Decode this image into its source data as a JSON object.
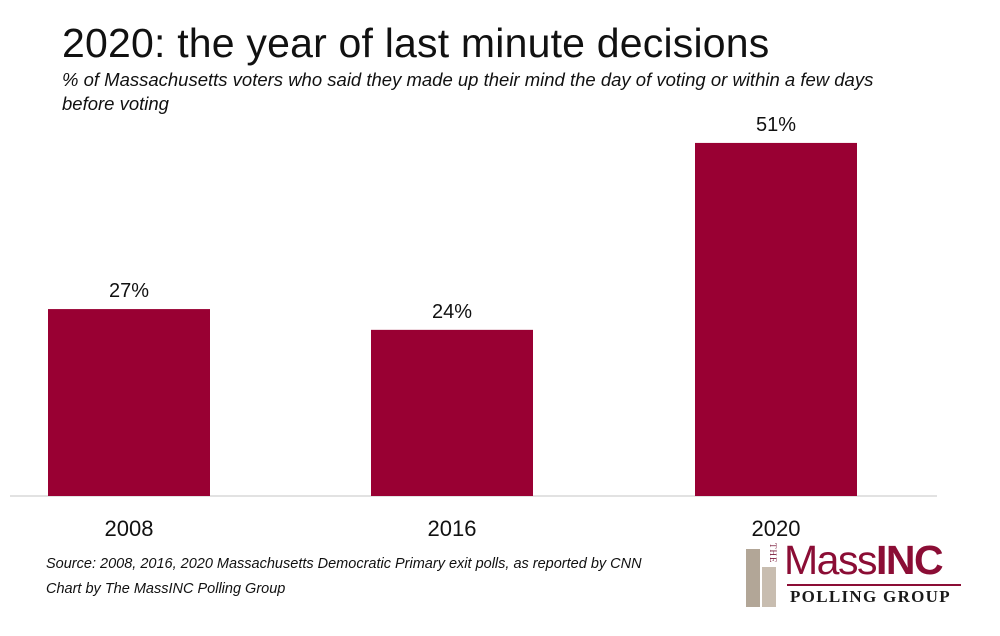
{
  "chart_data": {
    "type": "bar",
    "title": "2020: the year of last minute decisions",
    "subtitle": "% of Massachusetts voters who said they made up their mind the day of voting or within a few days before voting",
    "categories": [
      "2008",
      "2016",
      "2020"
    ],
    "values": [
      27,
      24,
      51
    ],
    "data_labels": [
      "27%",
      "24%",
      "51%"
    ],
    "ylim": [
      0,
      52
    ],
    "xlabel": "",
    "ylabel": "",
    "grid": false,
    "bar_color": "#990033",
    "axis_color": "#d9d9d9"
  },
  "footer": {
    "source_line": "Source: 2008, 2016, 2020 Massachusetts Democratic Primary exit polls, as reported by CNN",
    "credit_line": "Chart by The MassINC Polling Group"
  },
  "logo": {
    "the": "THE",
    "brand_mass": "Mass",
    "brand_inc": "INC",
    "subtitle": "POLLING GROUP",
    "brand_color": "#8b0d35"
  }
}
